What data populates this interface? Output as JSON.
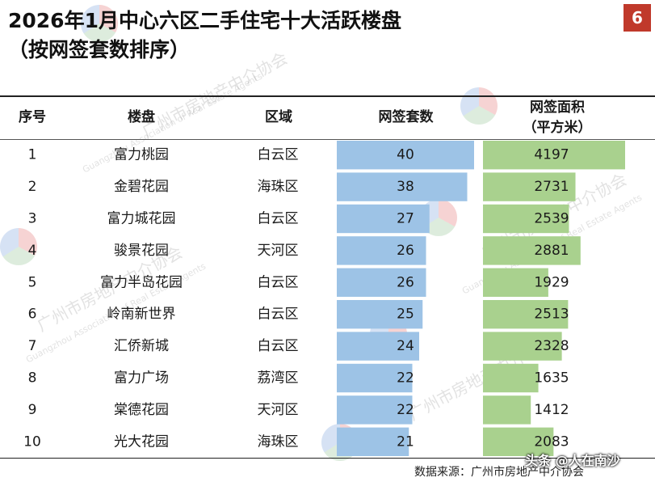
{
  "title_line1": "2026年1月中心六区二手住宅十大活跃楼盘",
  "title_line2": "（按网签套数排序）",
  "page_number": "6",
  "headers": {
    "rank": "序号",
    "estate": "楼盘",
    "district": "区域",
    "units": "网签套数",
    "area_line1": "网签面积",
    "area_line2": "（平方米）"
  },
  "colors": {
    "units_bar": "#9dc3e6",
    "area_bar": "#a9d18e",
    "title_text": "#111111",
    "badge": "#c0392b"
  },
  "chart_data": {
    "type": "table",
    "columns": [
      "序号",
      "楼盘",
      "区域",
      "网签套数",
      "网签面积（平方米）"
    ],
    "rows": [
      {
        "rank": "1",
        "estate": "富力桃园",
        "district": "白云区",
        "units": 40,
        "area": 4197
      },
      {
        "rank": "2",
        "estate": "金碧花园",
        "district": "海珠区",
        "units": 38,
        "area": 2731
      },
      {
        "rank": "3",
        "estate": "富力城花园",
        "district": "白云区",
        "units": 27,
        "area": 2539
      },
      {
        "rank": "4",
        "estate": "骏景花园",
        "district": "天河区",
        "units": 26,
        "area": 2881
      },
      {
        "rank": "5",
        "estate": "富力半岛花园",
        "district": "白云区",
        "units": 26,
        "area": 1929
      },
      {
        "rank": "6",
        "estate": "岭南新世界",
        "district": "白云区",
        "units": 25,
        "area": 2513
      },
      {
        "rank": "7",
        "estate": "汇侨新城",
        "district": "白云区",
        "units": 24,
        "area": 2328
      },
      {
        "rank": "8",
        "estate": "富力广场",
        "district": "荔湾区",
        "units": 22,
        "area": 1635
      },
      {
        "rank": "9",
        "estate": "棠德花园",
        "district": "天河区",
        "units": 22,
        "area": 1412
      },
      {
        "rank": "10",
        "estate": "光大花园",
        "district": "海珠区",
        "units": 21,
        "area": 2083
      }
    ],
    "units_max": 40,
    "area_max": 4197
  },
  "source": "数据来源：广州市房地产中介协会",
  "watermark": {
    "org_cn": "广州市房地产中介协会",
    "org_en": "Guangzhou Association of Real Estate Agents",
    "platform_tag": "头条 @人在南沙"
  }
}
